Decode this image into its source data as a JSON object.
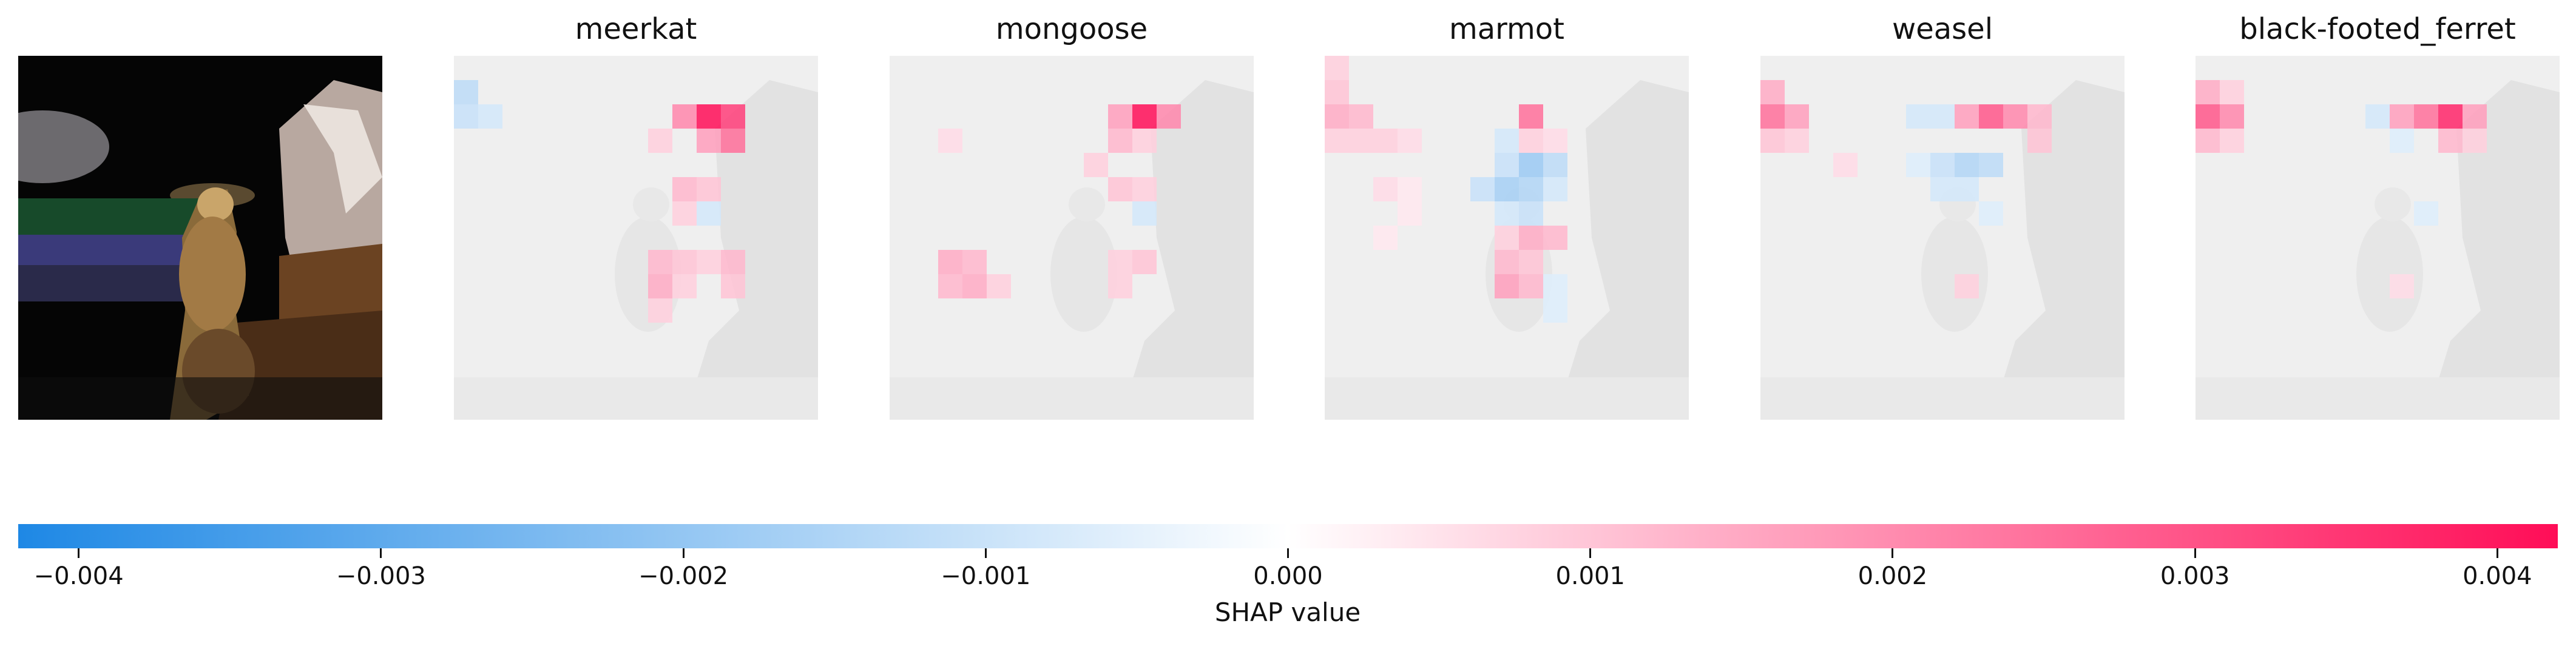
{
  "figure": {
    "type": "image-explanation",
    "panels": [
      {
        "kind": "image",
        "label": ""
      },
      {
        "kind": "shap",
        "label": "meerkat"
      },
      {
        "kind": "shap",
        "label": "mongoose"
      },
      {
        "kind": "shap",
        "label": "marmot"
      },
      {
        "kind": "shap",
        "label": "weasel"
      },
      {
        "kind": "shap",
        "label": "black-footed_ferret"
      }
    ],
    "colorbar": {
      "min": -0.0042,
      "max": 0.0042,
      "low_color": "#1e88e5",
      "mid_color": "#ffffff",
      "high_color": "#ff0d57",
      "ticks": [
        {
          "value": -0.004,
          "label": "−0.004"
        },
        {
          "value": -0.003,
          "label": "−0.003"
        },
        {
          "value": -0.002,
          "label": "−0.002"
        },
        {
          "value": -0.001,
          "label": "−0.001"
        },
        {
          "value": 0.0,
          "label": "0.000"
        },
        {
          "value": 0.001,
          "label": "0.001"
        },
        {
          "value": 0.002,
          "label": "0.002"
        },
        {
          "value": 0.003,
          "label": "0.003"
        },
        {
          "value": 0.004,
          "label": "0.004"
        }
      ],
      "title": "SHAP value"
    }
  }
}
